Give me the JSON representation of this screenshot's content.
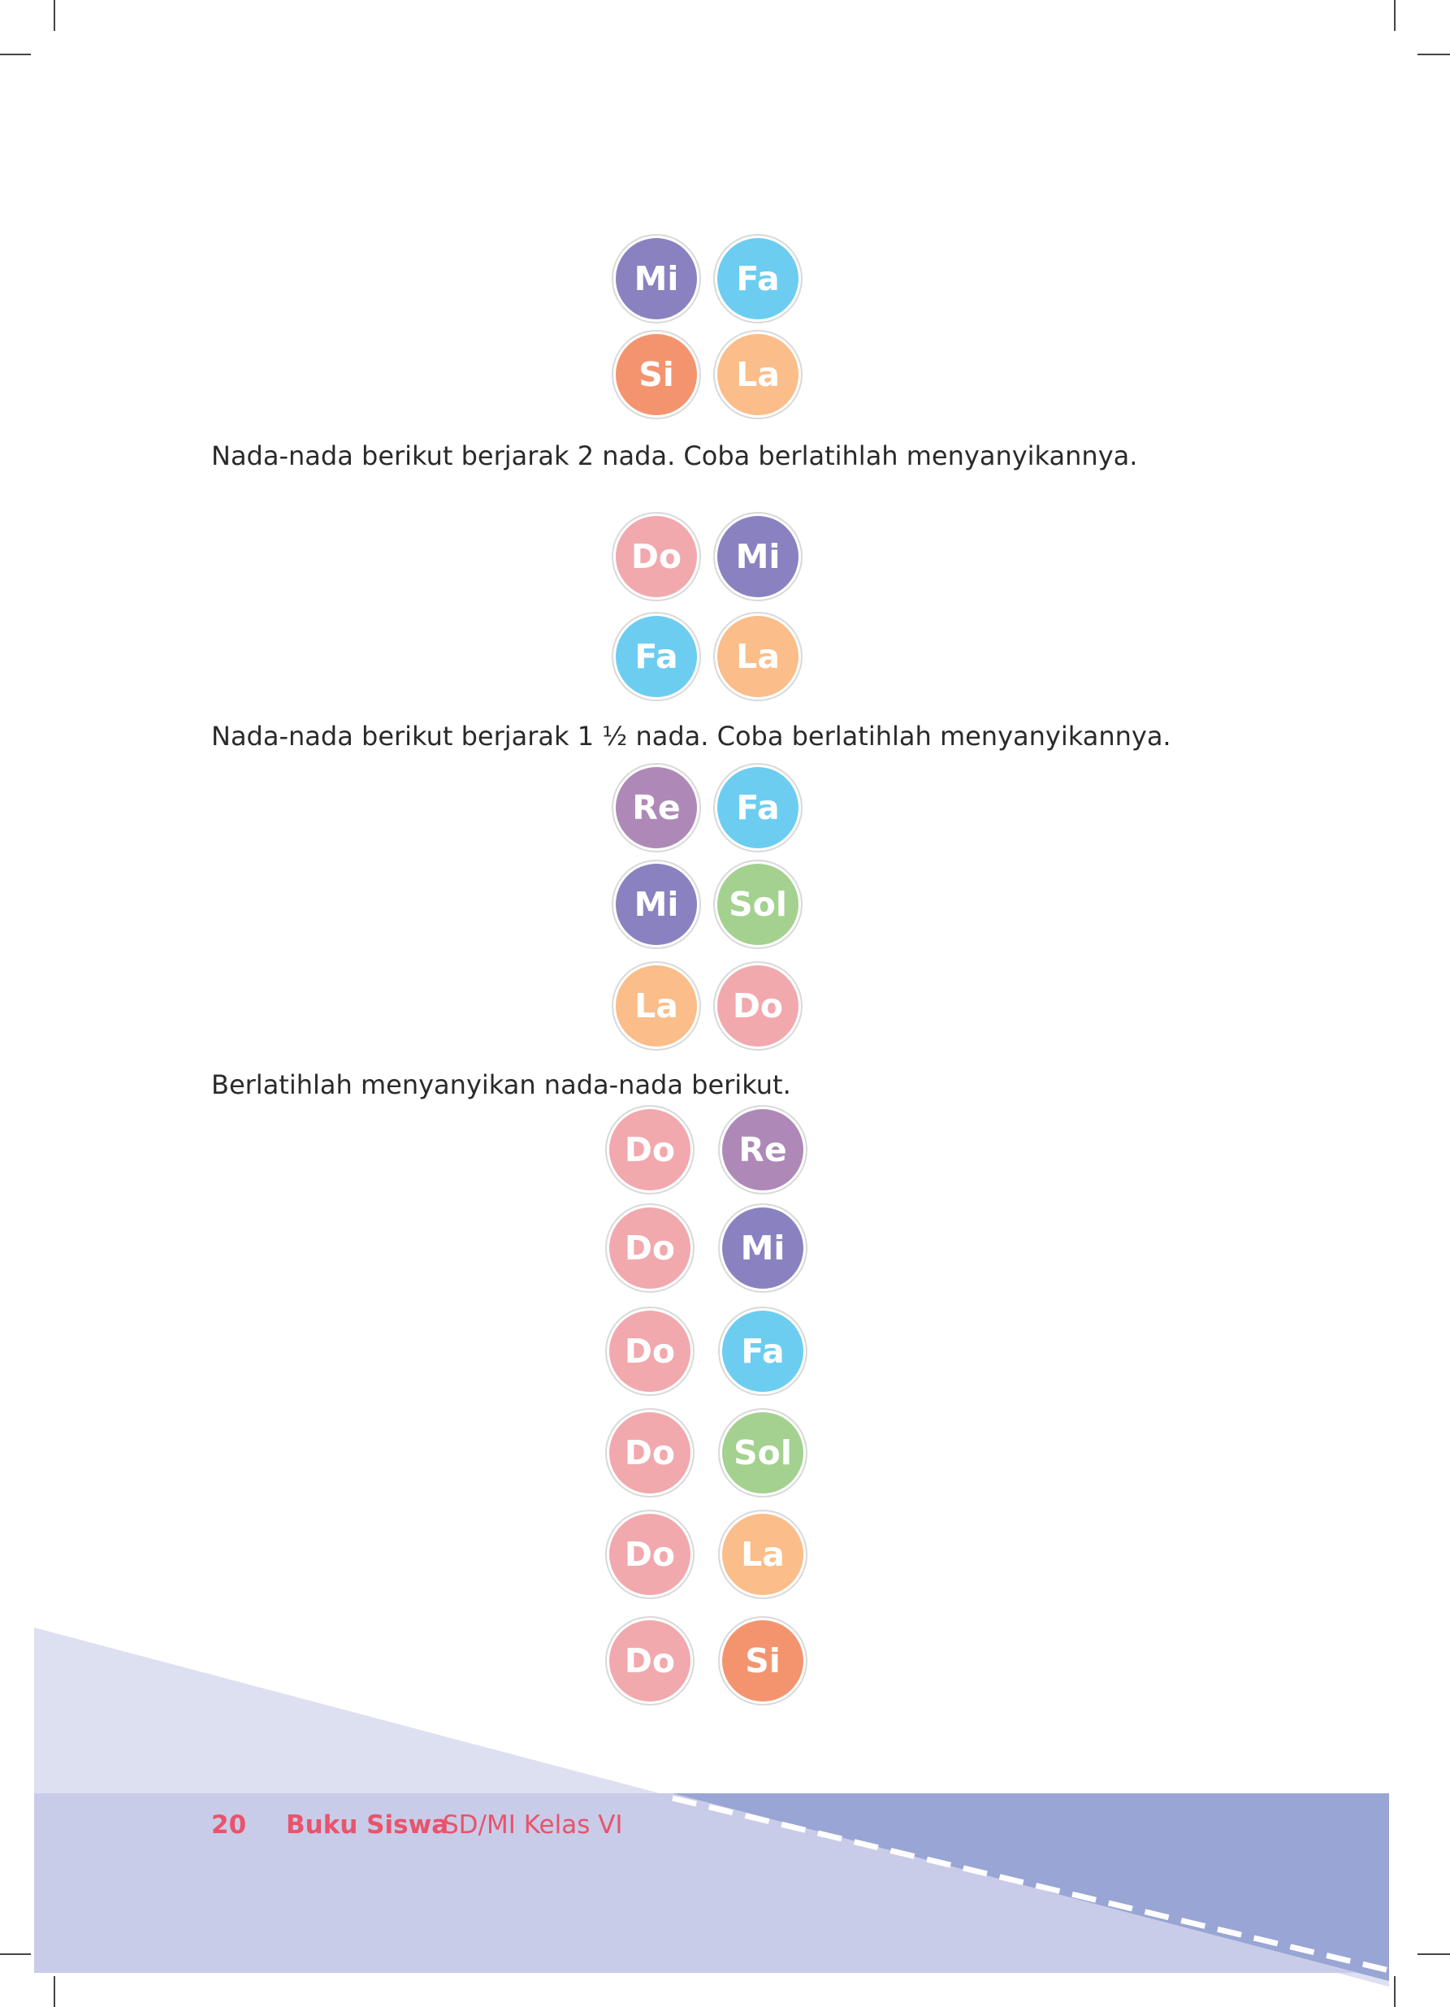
{
  "colors": {
    "Do": "#f1a9ad",
    "Re": "#ae89b8",
    "Mi": "#8a82c0",
    "Fa": "#6ccdf1",
    "Sol": "#a4d18f",
    "La": "#fbbd89",
    "Si": "#f4946f",
    "footer_text": "#e9536c"
  },
  "instructions": [
    "Nada-nada berikut berjarak 2 nada. Coba berlatihlah menyanyikannya.",
    "Nada-nada berikut berjarak 1 ½ nada. Coba berlatihlah menyanyikannya.",
    "Berlatihlah menyanyikan nada-nada berikut."
  ],
  "notes": [
    "Mi",
    "Fa",
    "Si",
    "La",
    "Do",
    "Mi",
    "Fa",
    "La",
    "Re",
    "Fa",
    "Mi",
    "Sol",
    "La",
    "Do",
    "Do",
    "Re",
    "Do",
    "Mi",
    "Do",
    "Fa",
    "Do",
    "Sol",
    "Do",
    "La",
    "Do",
    "Si"
  ],
  "footer": {
    "page_number": "20",
    "book_title": "Buku Siswa",
    "subtitle": "SD/MI Kelas VI"
  }
}
